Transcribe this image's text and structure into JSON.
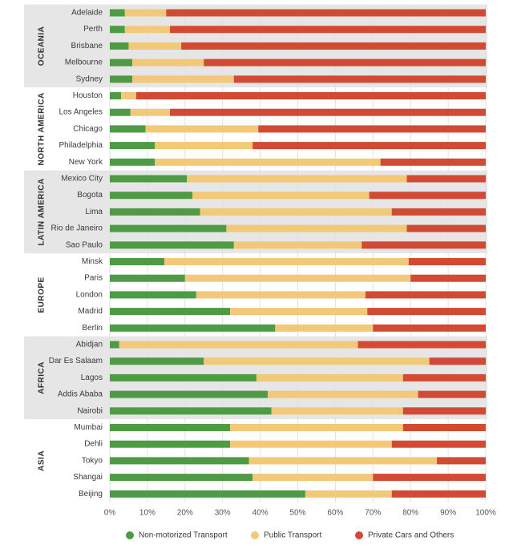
{
  "chart_data": {
    "type": "bar",
    "stacked": true,
    "orientation": "horizontal",
    "xlim": [
      0,
      100
    ],
    "x_ticks": [
      "0%",
      "10%",
      "20%",
      "30%",
      "40%",
      "50%",
      "60%",
      "70%",
      "80%",
      "90%",
      "100%"
    ],
    "grid": true,
    "legend_position": "bottom",
    "colors": {
      "non_motorized": "#4e9a45",
      "public": "#f2c879",
      "private": "#d24a33",
      "region_band": "#e6e6e6",
      "grid": "#e2e2e2"
    },
    "series": [
      {
        "key": "non_motorized",
        "name": "Non-motorized Transport"
      },
      {
        "key": "public",
        "name": "Public Transport"
      },
      {
        "key": "private",
        "name": "Private Cars and Others"
      }
    ],
    "groups": [
      {
        "region": "OCEANIA",
        "shaded": true,
        "cities": [
          {
            "name": "Adelaide",
            "values": [
              4,
              11,
              85
            ]
          },
          {
            "name": "Perth",
            "values": [
              4,
              12,
              84
            ]
          },
          {
            "name": "Brisbane",
            "values": [
              5,
              14,
              81
            ]
          },
          {
            "name": "Melbourne",
            "values": [
              6,
              19,
              75
            ]
          },
          {
            "name": "Sydney",
            "values": [
              6,
              27,
              67
            ]
          }
        ]
      },
      {
        "region": "NORTH AMERICA",
        "shaded": false,
        "cities": [
          {
            "name": "Houston",
            "values": [
              3,
              4,
              93
            ]
          },
          {
            "name": "Los Angeles",
            "values": [
              5.5,
              10.5,
              84
            ]
          },
          {
            "name": "Chicago",
            "values": [
              9.5,
              30,
              60.5
            ]
          },
          {
            "name": "Philadelphia",
            "values": [
              12,
              26,
              62
            ]
          },
          {
            "name": "New York",
            "values": [
              12,
              60,
              28
            ]
          }
        ]
      },
      {
        "region": "LATIN AMERICA",
        "shaded": true,
        "cities": [
          {
            "name": "Mexico  City",
            "values": [
              20.5,
              58.5,
              21
            ]
          },
          {
            "name": "Bogota",
            "values": [
              22,
              47,
              31
            ]
          },
          {
            "name": "Lima",
            "values": [
              24,
              51,
              25
            ]
          },
          {
            "name": "Rio de Janeiro",
            "values": [
              31,
              48,
              21
            ]
          },
          {
            "name": "Sao Paulo",
            "values": [
              33,
              34,
              33
            ]
          }
        ]
      },
      {
        "region": "EUROPE",
        "shaded": false,
        "cities": [
          {
            "name": "Minsk",
            "values": [
              14.5,
              65,
              20.5
            ]
          },
          {
            "name": "Paris",
            "values": [
              20,
              60,
              20
            ]
          },
          {
            "name": "London",
            "values": [
              23,
              45,
              32
            ]
          },
          {
            "name": "Madrid",
            "values": [
              32,
              36.5,
              31.5
            ]
          },
          {
            "name": "Berlin",
            "values": [
              44,
              26,
              30
            ]
          }
        ]
      },
      {
        "region": "AFRICA",
        "shaded": true,
        "cities": [
          {
            "name": "Abidjan",
            "values": [
              2.5,
              63.5,
              34
            ]
          },
          {
            "name": "Dar Es Salaam",
            "values": [
              25,
              60,
              15
            ]
          },
          {
            "name": "Lagos",
            "values": [
              39,
              39,
              22
            ]
          },
          {
            "name": "Addis Ababa",
            "values": [
              42,
              40,
              18
            ]
          },
          {
            "name": "Nairobi",
            "values": [
              43,
              35,
              22
            ]
          }
        ]
      },
      {
        "region": "ASIA",
        "shaded": false,
        "cities": [
          {
            "name": "Mumbai",
            "values": [
              32,
              46,
              22
            ]
          },
          {
            "name": "Dehli",
            "values": [
              32,
              43,
              25
            ]
          },
          {
            "name": "Tokyo",
            "values": [
              37,
              50,
              13
            ]
          },
          {
            "name": "Shangai",
            "values": [
              38,
              32,
              30
            ]
          },
          {
            "name": "Beijing",
            "values": [
              52,
              23,
              25
            ]
          }
        ]
      }
    ]
  }
}
